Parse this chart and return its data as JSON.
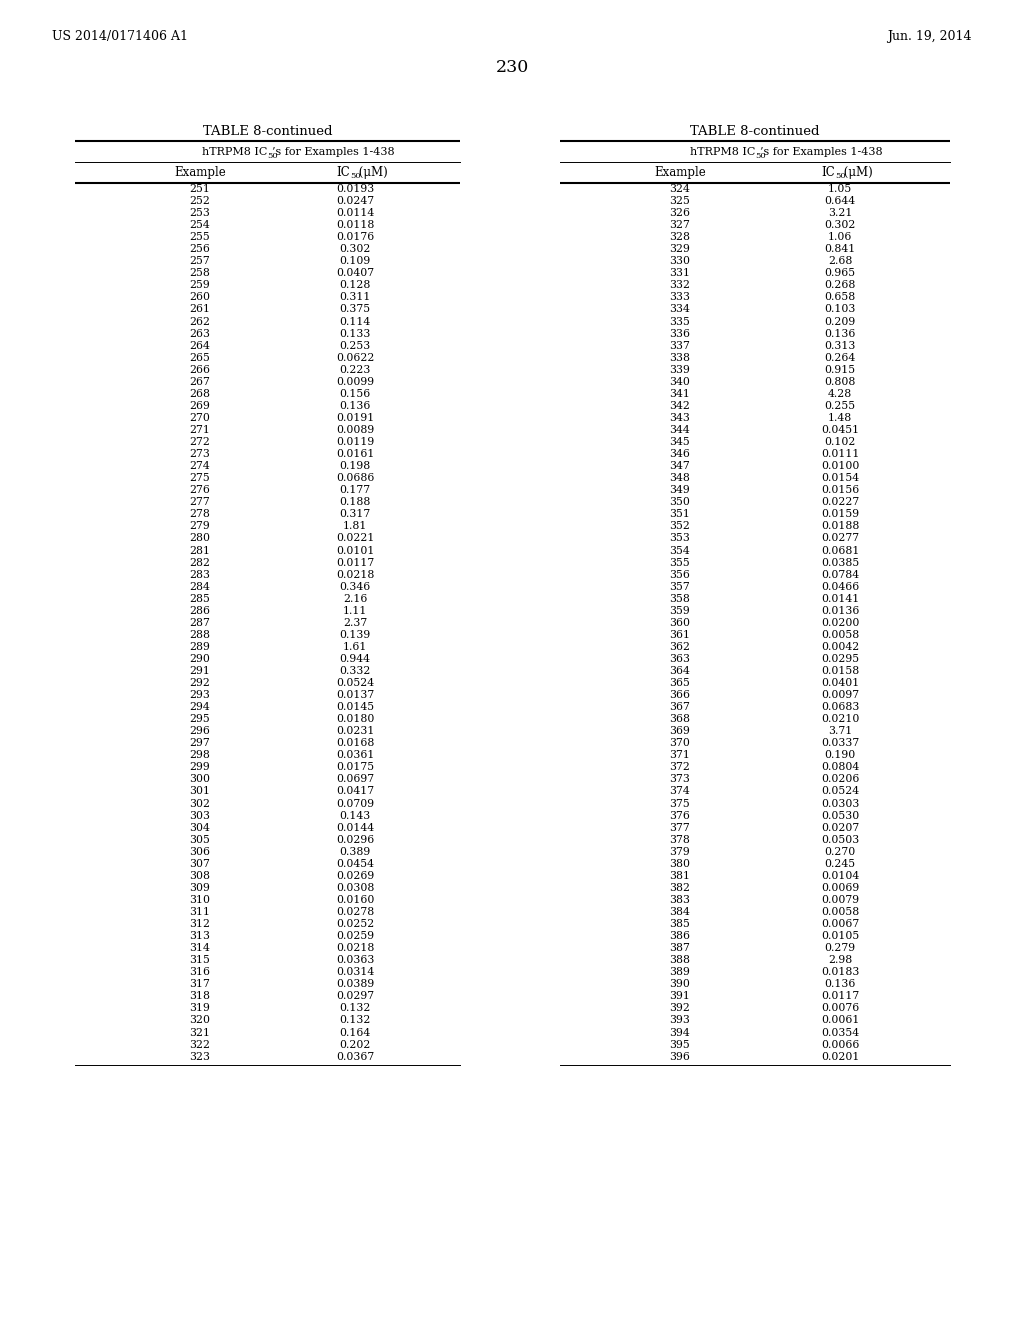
{
  "page_number": "230",
  "left_header": "US 2014/0171406 A1",
  "right_header": "Jun. 19, 2014",
  "table_title": "TABLE 8-continued",
  "left_data": [
    [
      "251",
      "0.0193"
    ],
    [
      "252",
      "0.0247"
    ],
    [
      "253",
      "0.0114"
    ],
    [
      "254",
      "0.0118"
    ],
    [
      "255",
      "0.0176"
    ],
    [
      "256",
      "0.302"
    ],
    [
      "257",
      "0.109"
    ],
    [
      "258",
      "0.0407"
    ],
    [
      "259",
      "0.128"
    ],
    [
      "260",
      "0.311"
    ],
    [
      "261",
      "0.375"
    ],
    [
      "262",
      "0.114"
    ],
    [
      "263",
      "0.133"
    ],
    [
      "264",
      "0.253"
    ],
    [
      "265",
      "0.0622"
    ],
    [
      "266",
      "0.223"
    ],
    [
      "267",
      "0.0099"
    ],
    [
      "268",
      "0.156"
    ],
    [
      "269",
      "0.136"
    ],
    [
      "270",
      "0.0191"
    ],
    [
      "271",
      "0.0089"
    ],
    [
      "272",
      "0.0119"
    ],
    [
      "273",
      "0.0161"
    ],
    [
      "274",
      "0.198"
    ],
    [
      "275",
      "0.0686"
    ],
    [
      "276",
      "0.177"
    ],
    [
      "277",
      "0.188"
    ],
    [
      "278",
      "0.317"
    ],
    [
      "279",
      "1.81"
    ],
    [
      "280",
      "0.0221"
    ],
    [
      "281",
      "0.0101"
    ],
    [
      "282",
      "0.0117"
    ],
    [
      "283",
      "0.0218"
    ],
    [
      "284",
      "0.346"
    ],
    [
      "285",
      "2.16"
    ],
    [
      "286",
      "1.11"
    ],
    [
      "287",
      "2.37"
    ],
    [
      "288",
      "0.139"
    ],
    [
      "289",
      "1.61"
    ],
    [
      "290",
      "0.944"
    ],
    [
      "291",
      "0.332"
    ],
    [
      "292",
      "0.0524"
    ],
    [
      "293",
      "0.0137"
    ],
    [
      "294",
      "0.0145"
    ],
    [
      "295",
      "0.0180"
    ],
    [
      "296",
      "0.0231"
    ],
    [
      "297",
      "0.0168"
    ],
    [
      "298",
      "0.0361"
    ],
    [
      "299",
      "0.0175"
    ],
    [
      "300",
      "0.0697"
    ],
    [
      "301",
      "0.0417"
    ],
    [
      "302",
      "0.0709"
    ],
    [
      "303",
      "0.143"
    ],
    [
      "304",
      "0.0144"
    ],
    [
      "305",
      "0.0296"
    ],
    [
      "306",
      "0.389"
    ],
    [
      "307",
      "0.0454"
    ],
    [
      "308",
      "0.0269"
    ],
    [
      "309",
      "0.0308"
    ],
    [
      "310",
      "0.0160"
    ],
    [
      "311",
      "0.0278"
    ],
    [
      "312",
      "0.0252"
    ],
    [
      "313",
      "0.0259"
    ],
    [
      "314",
      "0.0218"
    ],
    [
      "315",
      "0.0363"
    ],
    [
      "316",
      "0.0314"
    ],
    [
      "317",
      "0.0389"
    ],
    [
      "318",
      "0.0297"
    ],
    [
      "319",
      "0.132"
    ],
    [
      "320",
      "0.132"
    ],
    [
      "321",
      "0.164"
    ],
    [
      "322",
      "0.202"
    ],
    [
      "323",
      "0.0367"
    ]
  ],
  "right_data": [
    [
      "324",
      "1.05"
    ],
    [
      "325",
      "0.644"
    ],
    [
      "326",
      "3.21"
    ],
    [
      "327",
      "0.302"
    ],
    [
      "328",
      "1.06"
    ],
    [
      "329",
      "0.841"
    ],
    [
      "330",
      "2.68"
    ],
    [
      "331",
      "0.965"
    ],
    [
      "332",
      "0.268"
    ],
    [
      "333",
      "0.658"
    ],
    [
      "334",
      "0.103"
    ],
    [
      "335",
      "0.209"
    ],
    [
      "336",
      "0.136"
    ],
    [
      "337",
      "0.313"
    ],
    [
      "338",
      "0.264"
    ],
    [
      "339",
      "0.915"
    ],
    [
      "340",
      "0.808"
    ],
    [
      "341",
      "4.28"
    ],
    [
      "342",
      "0.255"
    ],
    [
      "343",
      "1.48"
    ],
    [
      "344",
      "0.0451"
    ],
    [
      "345",
      "0.102"
    ],
    [
      "346",
      "0.0111"
    ],
    [
      "347",
      "0.0100"
    ],
    [
      "348",
      "0.0154"
    ],
    [
      "349",
      "0.0156"
    ],
    [
      "350",
      "0.0227"
    ],
    [
      "351",
      "0.0159"
    ],
    [
      "352",
      "0.0188"
    ],
    [
      "353",
      "0.0277"
    ],
    [
      "354",
      "0.0681"
    ],
    [
      "355",
      "0.0385"
    ],
    [
      "356",
      "0.0784"
    ],
    [
      "357",
      "0.0466"
    ],
    [
      "358",
      "0.0141"
    ],
    [
      "359",
      "0.0136"
    ],
    [
      "360",
      "0.0200"
    ],
    [
      "361",
      "0.0058"
    ],
    [
      "362",
      "0.0042"
    ],
    [
      "363",
      "0.0295"
    ],
    [
      "364",
      "0.0158"
    ],
    [
      "365",
      "0.0401"
    ],
    [
      "366",
      "0.0097"
    ],
    [
      "367",
      "0.0683"
    ],
    [
      "368",
      "0.0210"
    ],
    [
      "369",
      "3.71"
    ],
    [
      "370",
      "0.0337"
    ],
    [
      "371",
      "0.190"
    ],
    [
      "372",
      "0.0804"
    ],
    [
      "373",
      "0.0206"
    ],
    [
      "374",
      "0.0524"
    ],
    [
      "375",
      "0.0303"
    ],
    [
      "376",
      "0.0530"
    ],
    [
      "377",
      "0.0207"
    ],
    [
      "378",
      "0.0503"
    ],
    [
      "379",
      "0.270"
    ],
    [
      "380",
      "0.245"
    ],
    [
      "381",
      "0.0104"
    ],
    [
      "382",
      "0.0069"
    ],
    [
      "383",
      "0.0079"
    ],
    [
      "384",
      "0.0058"
    ],
    [
      "385",
      "0.0067"
    ],
    [
      "386",
      "0.0105"
    ],
    [
      "387",
      "0.279"
    ],
    [
      "388",
      "2.98"
    ],
    [
      "389",
      "0.0183"
    ],
    [
      "390",
      "0.136"
    ],
    [
      "391",
      "0.0117"
    ],
    [
      "392",
      "0.0076"
    ],
    [
      "393",
      "0.0061"
    ],
    [
      "394",
      "0.0354"
    ],
    [
      "395",
      "0.0066"
    ],
    [
      "396",
      "0.0201"
    ]
  ],
  "bg_color": "#ffffff",
  "text_color": "#000000",
  "font_size_header": 9.5,
  "font_size_data": 8.0,
  "font_size_page": 12,
  "font_size_patnum": 9
}
